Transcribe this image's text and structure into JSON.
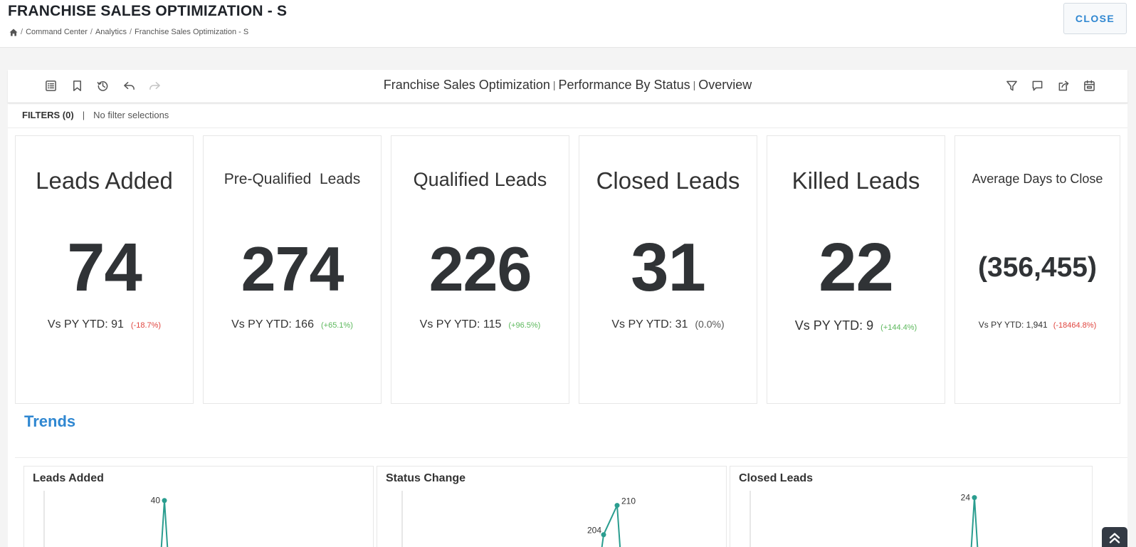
{
  "header": {
    "title": "FRANCHISE SALES OPTIMIZATION - S",
    "breadcrumb": [
      "Command Center",
      "Analytics",
      "Franchise Sales Optimization - S"
    ],
    "breadcrumb_separator": "/",
    "close_label": "CLOSE"
  },
  "toolbar": {
    "left_icons": [
      "list-icon",
      "bookmark-icon",
      "history-icon",
      "undo-icon",
      "redo-icon"
    ],
    "right_icons": [
      "filter-icon",
      "comment-icon",
      "share-icon",
      "calendar-icon"
    ],
    "title_parts": [
      "Franchise Sales Optimization",
      "Performance By Status",
      "Overview"
    ],
    "title_separator": "|"
  },
  "filters": {
    "label": "FILTERS (0)",
    "separator": "|",
    "value": "No filter selections"
  },
  "kpis": [
    {
      "title": "Leads Added",
      "value": "74",
      "compare": "Vs PY YTD: 91",
      "delta": "(-18.7%)",
      "trend": "negative"
    },
    {
      "title": "Pre-Qualified  Leads",
      "value": "274",
      "compare": "Vs PY YTD: 166",
      "delta": "(+65.1%)",
      "trend": "positive"
    },
    {
      "title": "Qualified Leads",
      "value": "226",
      "compare": "Vs PY YTD: 115",
      "delta": "(+96.5%)",
      "trend": "positive"
    },
    {
      "title": "Closed Leads",
      "value": "31",
      "compare": "Vs PY YTD: 31",
      "delta": "(0.0%)",
      "trend": "neutral"
    },
    {
      "title": "Killed Leads",
      "value": "22",
      "compare": "Vs PY YTD: 9",
      "delta": "(+144.4%)",
      "trend": "positive"
    },
    {
      "title": "Average Days to Close",
      "value": "(356,455)",
      "compare": "Vs PY YTD: 1,941",
      "delta": "(-18464.8%)",
      "trend": "negative"
    }
  ],
  "trends": {
    "title": "Trends"
  },
  "colors": {
    "accent": "#2f87d1",
    "negative": "#e0453f",
    "positive": "#5cb85c",
    "series": "#2a9d8f"
  },
  "chart_data": [
    {
      "type": "line",
      "title": "Leads Added",
      "y_ticks": [
        35
      ],
      "points": [
        {
          "label": "40",
          "y": 40
        }
      ],
      "ylim": [
        34,
        41
      ]
    },
    {
      "type": "line",
      "title": "Status Change",
      "y_ticks": [
        200
      ],
      "points": [
        {
          "label": "204",
          "y": 204
        },
        {
          "label": "210",
          "y": 210
        }
      ],
      "ylim": [
        199,
        213
      ]
    },
    {
      "type": "line",
      "title": "Closed Leads",
      "y_ticks": [
        20
      ],
      "points": [
        {
          "label": "24",
          "y": 24
        }
      ],
      "ylim": [
        19.5,
        24.5
      ]
    }
  ]
}
